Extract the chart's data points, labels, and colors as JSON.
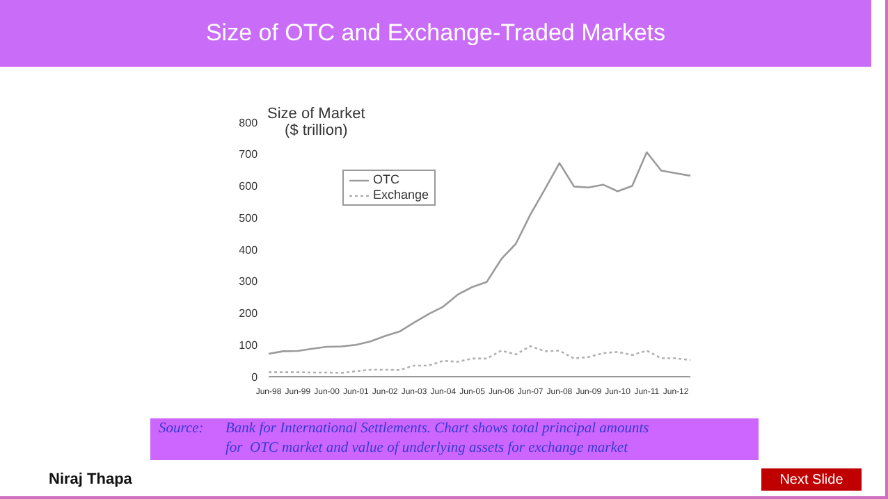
{
  "chart_data": {
    "type": "line",
    "title": "Size of OTC and Exchange-Traded Markets",
    "ylabel": "Size of Market\n($ trillion)",
    "categories": [
      "Jun-98",
      null,
      "Jun-99",
      null,
      "Jun-00",
      null,
      "Jun-01",
      null,
      "Jun-02",
      null,
      "Jun-03",
      null,
      "Jun-04",
      null,
      "Jun-05",
      null,
      "Jun-06",
      null,
      "Jun-07",
      null,
      "Jun-08",
      null,
      "Jun-09",
      null,
      "Jun-10",
      null,
      "Jun-11",
      null,
      "Jun-12",
      null
    ],
    "series": [
      {
        "name": "OTC",
        "color": "#9a9a9a",
        "line_style": "solid",
        "values": [
          72,
          80,
          81,
          88,
          94,
          95,
          100,
          111,
          128,
          142,
          170,
          197,
          220,
          258,
          282,
          298,
          370,
          418,
          510,
          590,
          672,
          598,
          595,
          604,
          583,
          600,
          706,
          648,
          640,
          632
        ]
      },
      {
        "name": "Exchange",
        "color": "#b0b0b0",
        "line_style": "dotted",
        "values": [
          14,
          14,
          14,
          13,
          13,
          12,
          17,
          22,
          22,
          21,
          35,
          35,
          50,
          47,
          57,
          57,
          82,
          70,
          96,
          80,
          82,
          57,
          62,
          74,
          78,
          68,
          82,
          58,
          58,
          52
        ]
      }
    ],
    "ylim": [
      0,
      800
    ],
    "yticks": [
      0,
      100,
      200,
      300,
      400,
      500,
      600,
      700,
      800
    ],
    "grid": false,
    "legend": "top",
    "marker": "none",
    "annotations": [
      "Source:\tBank for International Settlements. Chart shows total principal amounts\nfor  OTC market and value of underlying assets for exchange market",
      "Niraj Thapa",
      "Next Slide"
    ]
  }
}
